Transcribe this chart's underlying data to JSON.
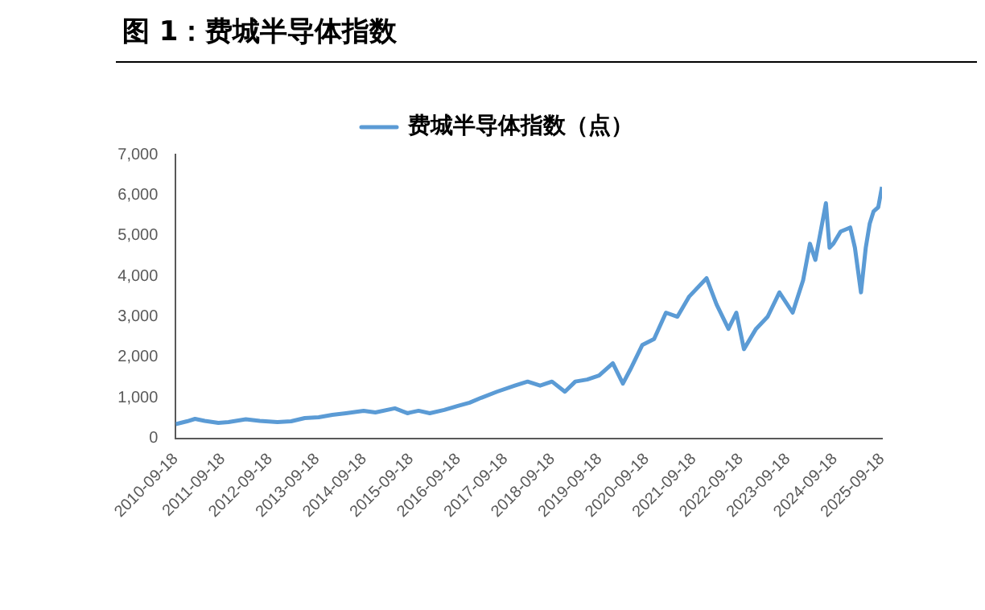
{
  "chart_data": {
    "type": "line",
    "title": "图 1：费城半导体指数",
    "x": [
      "2010-09-18",
      "2010-12-15",
      "2011-02-15",
      "2011-05-01",
      "2011-08-15",
      "2011-11-01",
      "2012-03-15",
      "2012-07-01",
      "2012-11-15",
      "2013-03-01",
      "2013-06-15",
      "2013-10-01",
      "2014-01-15",
      "2014-05-01",
      "2014-09-15",
      "2014-12-15",
      "2015-05-15",
      "2015-08-20",
      "2015-11-15",
      "2016-02-10",
      "2016-06-01",
      "2016-09-15",
      "2016-12-15",
      "2017-03-15",
      "2017-07-15",
      "2017-12-01",
      "2018-03-10",
      "2018-06-15",
      "2018-09-15",
      "2018-12-24",
      "2019-03-15",
      "2019-06-15",
      "2019-09-15",
      "2019-12-31",
      "2020-03-18",
      "2020-05-15",
      "2020-08-15",
      "2020-11-15",
      "2021-02-15",
      "2021-05-15",
      "2021-08-15",
      "2021-12-27",
      "2022-03-15",
      "2022-06-15",
      "2022-08-15",
      "2022-10-13",
      "2023-01-15",
      "2023-04-15",
      "2023-07-15",
      "2023-10-26",
      "2024-01-15",
      "2024-03-08",
      "2024-04-19",
      "2024-07-10",
      "2024-08-07",
      "2024-09-06",
      "2024-11-01",
      "2025-01-15",
      "2025-02-20",
      "2025-04-08",
      "2025-05-15",
      "2025-06-15",
      "2025-07-15",
      "2025-08-20",
      "2025-09-18"
    ],
    "series": [
      {
        "name": "费城半导体指数（点）",
        "color": "#5b9bd5",
        "values": [
          350,
          420,
          480,
          430,
          380,
          400,
          470,
          430,
          400,
          420,
          500,
          520,
          580,
          620,
          680,
          640,
          740,
          620,
          680,
          620,
          700,
          800,
          880,
          1000,
          1150,
          1300,
          1400,
          1300,
          1400,
          1150,
          1400,
          1450,
          1550,
          1850,
          1350,
          1700,
          2300,
          2450,
          3100,
          3000,
          3500,
          3950,
          3300,
          2700,
          3100,
          2200,
          2700,
          3000,
          3600,
          3100,
          3900,
          4800,
          4400,
          5800,
          4700,
          4800,
          5100,
          5200,
          4700,
          3600,
          4700,
          5300,
          5600,
          5700,
          6200
        ]
      }
    ],
    "xlim": [
      "2010-09-18",
      "2025-09-18"
    ],
    "xticks": [
      "2010-09-18",
      "2011-09-18",
      "2012-09-18",
      "2013-09-18",
      "2014-09-18",
      "2015-09-18",
      "2016-09-18",
      "2017-09-18",
      "2018-09-18",
      "2019-09-18",
      "2020-09-18",
      "2021-09-18",
      "2022-09-18",
      "2023-09-18",
      "2024-09-18",
      "2025-09-18"
    ],
    "ylim": [
      0,
      7000
    ],
    "yticks": [
      0,
      {
        "value": 1000,
        "label": "1,000"
      },
      {
        "value": 2000,
        "label": "2,000"
      },
      {
        "value": 3000,
        "label": "3,000"
      },
      {
        "value": 4000,
        "label": "4,000"
      },
      {
        "value": 5000,
        "label": "5,000"
      },
      {
        "value": 6000,
        "label": "6,000"
      },
      {
        "value": 7000,
        "label": "7,000"
      }
    ],
    "grid": false,
    "legend": "top",
    "marker": "none",
    "line_style": "solid"
  }
}
